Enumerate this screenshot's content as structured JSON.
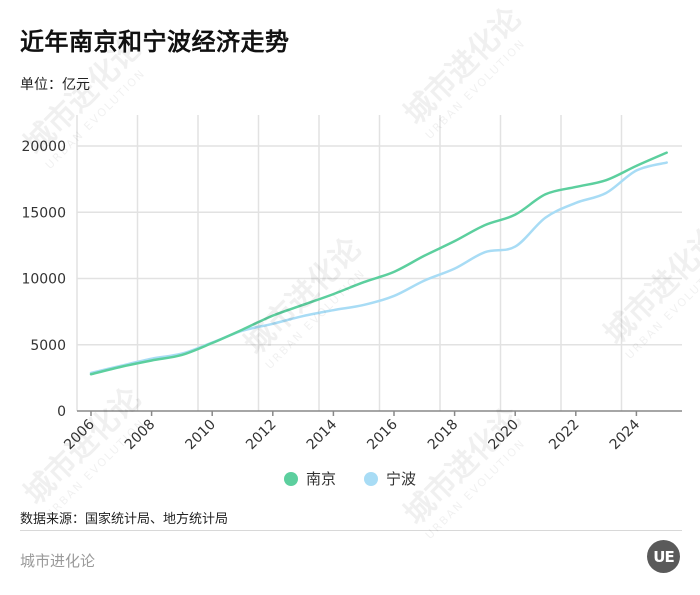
{
  "header": {
    "title": "近年南京和宁波经济走势",
    "unit": "单位：亿元"
  },
  "legend": [
    {
      "label": "南京",
      "color": "#5ccf9e"
    },
    {
      "label": "宁波",
      "color": "#a8dcf5"
    }
  ],
  "footer": {
    "source": "数据来源：国家统计局、地方统计局",
    "brand": "城市进化论",
    "logo_text": "UE"
  },
  "watermark": {
    "text": "城市进化论",
    "subtext": "URBAN EVOLUTION"
  },
  "chart_data": {
    "type": "line",
    "title": "近年南京和宁波经济走势",
    "xlabel": "",
    "ylabel": "单位：亿元",
    "x": [
      2006,
      2007,
      2008,
      2009,
      2010,
      2011,
      2012,
      2013,
      2014,
      2015,
      2016,
      2017,
      2018,
      2019,
      2020,
      2021,
      2022,
      2023,
      2024,
      2025
    ],
    "x_tick_labels": [
      "2006",
      "2008",
      "2010",
      "2012",
      "2014",
      "2016",
      "2018",
      "2020",
      "2022",
      "2024"
    ],
    "y_tick_labels": [
      "0",
      "5000",
      "10000",
      "15000",
      "20000"
    ],
    "ylim": [
      0,
      22000
    ],
    "grid": true,
    "legend_position": "bottom",
    "series": [
      {
        "name": "南京",
        "color": "#5ccf9e",
        "values": [
          2774,
          3340,
          3814,
          4230,
          5130,
          6145,
          7200,
          8012,
          8821,
          9721,
          10503,
          11715,
          12820,
          14031,
          14818,
          16355,
          16908,
          17421,
          18501,
          19500
        ]
      },
      {
        "name": "宁波",
        "color": "#a8dcf5",
        "values": [
          2874,
          3418,
          3946,
          4330,
          5163,
          6059,
          6582,
          7165,
          7610,
          8003,
          8686,
          9842,
          10746,
          11985,
          12409,
          14595,
          15704,
          16453,
          18148,
          18750
        ]
      }
    ]
  }
}
